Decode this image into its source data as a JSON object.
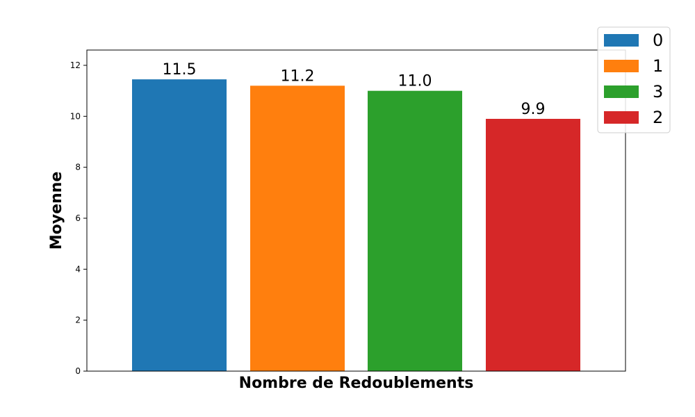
{
  "chart_data": {
    "type": "bar",
    "categories": [
      "0",
      "1",
      "3",
      "2"
    ],
    "values": [
      11.45,
      11.2,
      11.0,
      9.9
    ],
    "value_labels": [
      "11.5",
      "11.2",
      "11.0",
      "9.9"
    ],
    "colors": [
      "#1f77b4",
      "#ff7f0e",
      "#2ca02c",
      "#d62728"
    ],
    "xlabel": "Nombre de Redoublements",
    "ylabel": "Moyenne",
    "ylim": [
      0,
      12.6
    ],
    "yticks": [
      0,
      2,
      4,
      6,
      8,
      10,
      12
    ],
    "ytick_labels": [
      "0",
      "2",
      "4",
      "6",
      "8",
      "10",
      "12"
    ],
    "grid": false,
    "legend": {
      "position": "top-right",
      "entries": [
        "0",
        "1",
        "3",
        "2"
      ]
    }
  }
}
